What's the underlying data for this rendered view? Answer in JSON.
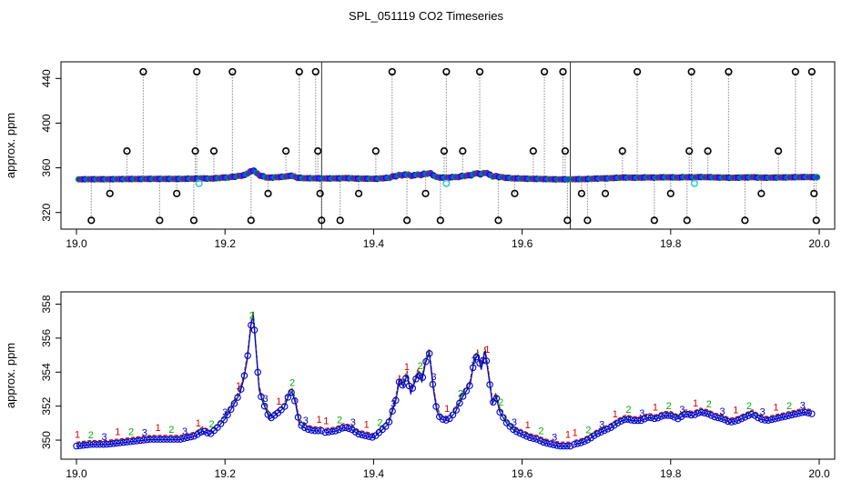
{
  "title": "SPL_051119  CO2 Timeseries",
  "colors": {
    "c1": "#d40000",
    "c2": "#00b000",
    "c3": "#0000cc",
    "point_fill": "#1d3cff",
    "outlier": "#000000",
    "cyan": "#33cccc",
    "dropline": "#9a9a9a",
    "axis": "#000000"
  },
  "chart_data": [
    {
      "id": "top",
      "type": "scatter",
      "title": "",
      "xlabel": "",
      "ylabel": "approx. ppm",
      "xlim": [
        19.0,
        20.0
      ],
      "ylim": [
        310,
        450
      ],
      "xticks": [
        19.0,
        19.2,
        19.4,
        19.6,
        19.8,
        20.0
      ],
      "xtick_labels": [
        "19.0",
        "19.2",
        "19.4",
        "19.6",
        "19.8",
        "20.0"
      ],
      "yticks": [
        320,
        360,
        400,
        440
      ],
      "ytick_labels": [
        "320",
        "360",
        "400",
        "440"
      ],
      "segment_breaks": [
        19.0,
        19.33,
        19.665,
        20.0
      ],
      "series": [
        {
          "name": "outliers",
          "x": [
            19.02,
            19.045,
            19.068,
            19.09,
            19.112,
            19.135,
            19.158,
            19.16,
            19.162,
            19.185,
            19.21,
            19.235,
            19.258,
            19.282,
            19.3,
            19.322,
            19.325,
            19.328,
            19.33,
            19.355,
            19.38,
            19.403,
            19.425,
            19.445,
            19.47,
            19.49,
            19.495,
            19.498,
            19.52,
            19.543,
            19.568,
            19.59,
            19.615,
            19.63,
            19.655,
            19.658,
            19.661,
            19.68,
            19.688,
            19.712,
            19.735,
            19.755,
            19.778,
            19.8,
            19.822,
            19.825,
            19.828,
            19.85,
            19.878,
            19.9,
            19.922,
            19.945,
            19.968,
            19.99,
            19.993,
            19.996
          ],
          "y": [
            313,
            337,
            375,
            446,
            313,
            337,
            313,
            375,
            446,
            375,
            446,
            313,
            337,
            375,
            446,
            446,
            375,
            337,
            313,
            313,
            337,
            375,
            446,
            313,
            337,
            313,
            375,
            446,
            375,
            446,
            313,
            337,
            375,
            446,
            446,
            375,
            313,
            337,
            313,
            337,
            375,
            446,
            313,
            337,
            313,
            375,
            446,
            375,
            446,
            313,
            337,
            375,
            446,
            446,
            337,
            313
          ]
        },
        {
          "name": "cyan-markers",
          "x": [
            19.165,
            19.498,
            19.832
          ],
          "y": [
            346,
            346,
            346
          ]
        }
      ]
    },
    {
      "id": "bottom",
      "type": "line",
      "title": "",
      "xlabel": "",
      "ylabel": "approx. ppm",
      "xlim": [
        19.0,
        20.0
      ],
      "ylim": [
        349.2,
        358.4
      ],
      "xticks": [
        19.0,
        19.2,
        19.4,
        19.6,
        19.8,
        20.0
      ],
      "xtick_labels": [
        "19.0",
        "19.2",
        "19.4",
        "19.6",
        "19.8",
        "20.0"
      ],
      "yticks": [
        350,
        352,
        354,
        356,
        358
      ],
      "ytick_labels": [
        "350",
        "352",
        "354",
        "356",
        "358"
      ],
      "gaps": [
        [
          19.33,
          19.335
        ],
        [
          19.665,
          19.67
        ]
      ],
      "trace": {
        "x": [
          19.0,
          19.02,
          19.04,
          19.06,
          19.08,
          19.1,
          19.12,
          19.14,
          19.16,
          19.17,
          19.18,
          19.19,
          19.2,
          19.21,
          19.22,
          19.225,
          19.23,
          19.235,
          19.238,
          19.242,
          19.246,
          19.25,
          19.26,
          19.27,
          19.28,
          19.285,
          19.29,
          19.295,
          19.3,
          19.31,
          19.32,
          19.33,
          19.335,
          19.35,
          19.36,
          19.37,
          19.38,
          19.39,
          19.4,
          19.41,
          19.42,
          19.43,
          19.435,
          19.44,
          19.445,
          19.45,
          19.455,
          19.46,
          19.465,
          19.47,
          19.475,
          19.48,
          19.485,
          19.49,
          19.5,
          19.51,
          19.52,
          19.53,
          19.535,
          19.54,
          19.545,
          19.55,
          19.555,
          19.56,
          19.565,
          19.57,
          19.58,
          19.59,
          19.6,
          19.61,
          19.62,
          19.63,
          19.64,
          19.65,
          19.66,
          19.665,
          19.67,
          19.68,
          19.69,
          19.7,
          19.71,
          19.72,
          19.73,
          19.74,
          19.75,
          19.76,
          19.77,
          19.78,
          19.79,
          19.8,
          19.81,
          19.82,
          19.83,
          19.84,
          19.85,
          19.86,
          19.87,
          19.88,
          19.89,
          19.9,
          19.91,
          19.92,
          19.93,
          19.94,
          19.95,
          19.96,
          19.97,
          19.98,
          19.99
        ],
        "y": [
          349.7,
          349.8,
          349.8,
          349.9,
          350.0,
          350.1,
          350.1,
          350.1,
          350.3,
          350.6,
          350.4,
          350.8,
          351.3,
          352.0,
          352.8,
          353.6,
          354.8,
          356.8,
          357.4,
          355.2,
          353.0,
          352.4,
          351.3,
          351.6,
          352.0,
          352.6,
          352.9,
          352.2,
          351.0,
          350.7,
          350.6,
          350.6,
          350.5,
          350.6,
          350.8,
          350.7,
          350.4,
          350.3,
          350.2,
          350.6,
          351.0,
          352.4,
          353.6,
          353.2,
          353.9,
          352.8,
          353.4,
          354.0,
          353.5,
          354.6,
          355.2,
          353.2,
          351.8,
          351.3,
          351.2,
          351.7,
          352.6,
          353.3,
          354.6,
          355.1,
          354.2,
          355.3,
          353.8,
          352.2,
          352.6,
          351.7,
          351.0,
          350.6,
          350.4,
          350.2,
          350.1,
          349.9,
          349.8,
          349.7,
          349.7,
          349.7,
          349.8,
          349.9,
          350.1,
          350.4,
          350.6,
          350.8,
          351.1,
          351.3,
          351.2,
          351.2,
          351.4,
          351.3,
          351.5,
          351.5,
          351.3,
          351.6,
          351.5,
          351.7,
          351.6,
          351.4,
          351.3,
          351.1,
          351.2,
          351.4,
          351.6,
          351.3,
          351.2,
          351.3,
          351.4,
          351.5,
          351.6,
          351.7,
          351.6
        ]
      }
    }
  ]
}
